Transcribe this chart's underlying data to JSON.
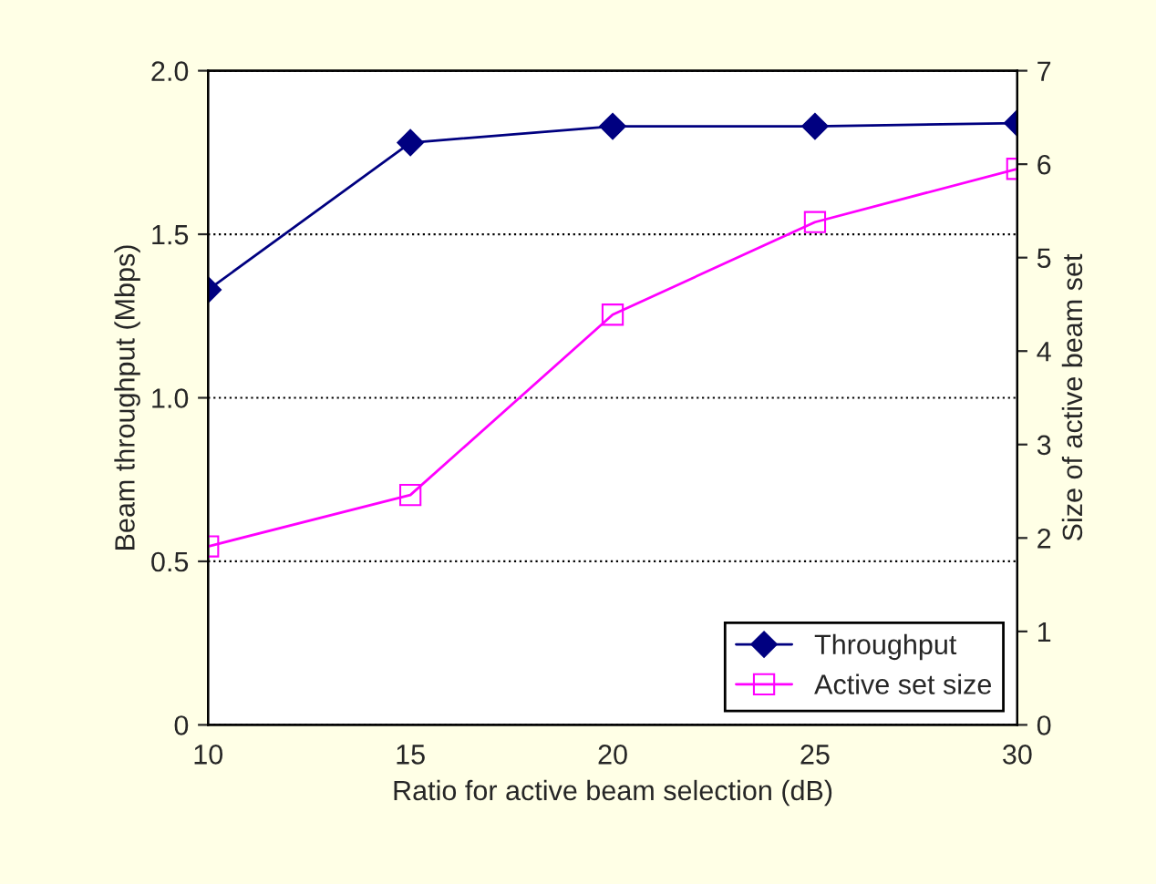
{
  "chart_data": {
    "type": "line",
    "xlabel": "Ratio for active beam selection (dB)",
    "ylabel": "Beam throughput (Mbps)",
    "y2label": "Size of active beam set",
    "x": [
      10,
      15,
      20,
      25,
      30
    ],
    "series": [
      {
        "name": "Throughput",
        "color": "#000080",
        "marker": "diamond",
        "values": [
          1.33,
          1.78,
          1.83,
          1.83,
          1.84
        ]
      },
      {
        "name": "Active set size",
        "color": "#ff00ff",
        "marker": "square",
        "axis": "y2",
        "values": [
          1.91,
          2.46,
          4.39,
          5.38,
          5.95
        ]
      }
    ],
    "xlim": [
      10,
      30
    ],
    "xticks": [
      10,
      15,
      20,
      25,
      30
    ],
    "ylim": [
      0,
      2
    ],
    "yticks": [
      0,
      0.5,
      {
        "value": 1,
        "label": "1.0"
      },
      1.5,
      {
        "value": 2,
        "label": "2.0"
      }
    ],
    "y2lim": [
      0,
      7
    ],
    "y2ticks": [
      0,
      1,
      2,
      3,
      4,
      5,
      6,
      7
    ],
    "grid": "y",
    "legend": "bottom right",
    "line_style": "solid"
  }
}
